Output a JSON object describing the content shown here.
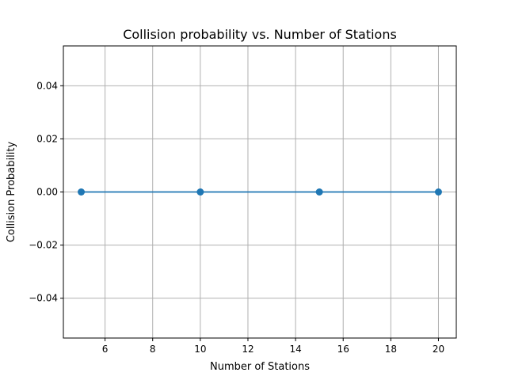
{
  "chart_data": {
    "type": "line",
    "title": "Collision probability vs. Number of Stations",
    "xlabel": "Number of Stations",
    "ylabel": "Collision Probability",
    "x": [
      5,
      10,
      15,
      20
    ],
    "series": [
      {
        "values": [
          0.0,
          0.0,
          0.0,
          0.0
        ],
        "color": "#1f77b4",
        "marker": "circle"
      }
    ],
    "xlim": [
      4.25,
      20.75
    ],
    "ylim": [
      -0.055,
      0.055
    ],
    "xticks": [
      6,
      8,
      10,
      12,
      14,
      16,
      18,
      20
    ],
    "xtick_labels": [
      "6",
      "8",
      "10",
      "12",
      "14",
      "16",
      "18",
      "20"
    ],
    "yticks": [
      0.04,
      0.02,
      0.0,
      -0.02,
      -0.04
    ],
    "ytick_labels": [
      "0.04",
      "0.02",
      "0.00",
      "−0.02",
      "−0.04"
    ],
    "grid": true,
    "grid_color": "#b0b0b0"
  }
}
